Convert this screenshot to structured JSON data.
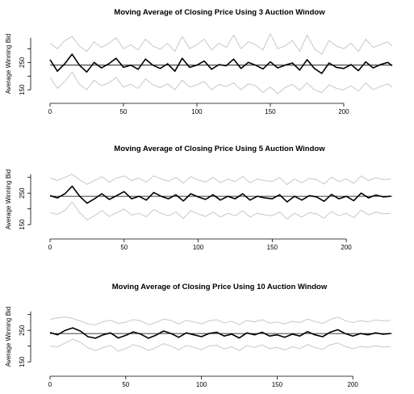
{
  "colors": {
    "moving_average": "#000000",
    "band": "#c8c8c8",
    "mean_line": "#000000",
    "axis": "#000000",
    "background": "#ffffff"
  },
  "chart_data": [
    {
      "type": "line",
      "title": "Moving Average of Closing Price Using 3 Auction Window",
      "xlabel": "",
      "ylabel": "Average Winning Bid",
      "xlim": [
        0,
        233
      ],
      "ylim": [
        130,
        360
      ],
      "x_ticks": [
        0,
        50,
        100,
        150,
        200
      ],
      "y_ticks": [
        150,
        250
      ],
      "mean": 240,
      "box": false,
      "series": [
        {
          "role": "moving_average",
          "x": [
            0,
            5,
            10,
            15,
            20,
            25,
            30,
            35,
            40,
            45,
            50,
            55,
            60,
            65,
            70,
            75,
            80,
            85,
            90,
            95,
            100,
            105,
            110,
            115,
            120,
            125,
            130,
            135,
            140,
            145,
            150,
            155,
            160,
            165,
            170,
            175,
            180,
            185,
            190,
            195,
            200,
            205,
            210,
            215,
            220,
            225,
            230,
            233
          ],
          "values": [
            260,
            218,
            245,
            280,
            240,
            215,
            250,
            230,
            245,
            265,
            232,
            240,
            225,
            262,
            240,
            228,
            245,
            218,
            265,
            232,
            240,
            255,
            225,
            242,
            238,
            262,
            228,
            250,
            240,
            226,
            252,
            230,
            240,
            248,
            222,
            260,
            228,
            210,
            248,
            232,
            228,
            242,
            220,
            252,
            230,
            242,
            250,
            238
          ]
        },
        {
          "role": "upper_band",
          "x": [
            0,
            5,
            10,
            15,
            20,
            25,
            30,
            35,
            40,
            45,
            50,
            55,
            60,
            65,
            70,
            75,
            80,
            85,
            90,
            95,
            100,
            105,
            110,
            115,
            120,
            125,
            130,
            135,
            140,
            145,
            150,
            155,
            160,
            165,
            170,
            175,
            180,
            185,
            190,
            195,
            200,
            205,
            210,
            215,
            220,
            225,
            230,
            233
          ],
          "values": [
            320,
            300,
            330,
            345,
            310,
            290,
            325,
            305,
            320,
            340,
            300,
            315,
            295,
            335,
            310,
            298,
            320,
            290,
            345,
            300,
            315,
            335,
            295,
            320,
            305,
            350,
            300,
            325,
            315,
            295,
            355,
            300,
            310,
            330,
            290,
            350,
            300,
            280,
            330,
            310,
            300,
            320,
            290,
            335,
            305,
            315,
            325,
            310
          ]
        },
        {
          "role": "lower_band",
          "x": [
            0,
            5,
            10,
            15,
            20,
            25,
            30,
            35,
            40,
            45,
            50,
            55,
            60,
            65,
            70,
            75,
            80,
            85,
            90,
            95,
            100,
            105,
            110,
            115,
            120,
            125,
            130,
            135,
            140,
            145,
            150,
            155,
            160,
            165,
            170,
            175,
            180,
            185,
            190,
            195,
            200,
            205,
            210,
            215,
            220,
            225,
            230,
            233
          ],
          "values": [
            195,
            155,
            180,
            215,
            170,
            150,
            185,
            165,
            175,
            195,
            160,
            170,
            155,
            190,
            168,
            158,
            172,
            150,
            185,
            160,
            168,
            180,
            150,
            170,
            162,
            175,
            150,
            172,
            165,
            140,
            160,
            135,
            158,
            170,
            148,
            175,
            150,
            140,
            168,
            155,
            150,
            165,
            145,
            175,
            150,
            162,
            172,
            160
          ]
        }
      ]
    },
    {
      "type": "line",
      "title": "Moving Average of Closing Price Using 5 Auction Window",
      "xlabel": "",
      "ylabel": "Average Winning Bid",
      "xlim": [
        0,
        231
      ],
      "ylim": [
        130,
        330
      ],
      "x_ticks": [
        0,
        50,
        100,
        150,
        200
      ],
      "y_ticks": [
        150,
        250
      ],
      "mean": 240,
      "box": false,
      "series": [
        {
          "role": "moving_average",
          "x": [
            0,
            5,
            10,
            15,
            20,
            25,
            30,
            35,
            40,
            45,
            50,
            55,
            60,
            65,
            70,
            75,
            80,
            85,
            90,
            95,
            100,
            105,
            110,
            115,
            120,
            125,
            130,
            135,
            140,
            145,
            150,
            155,
            160,
            165,
            170,
            175,
            180,
            185,
            190,
            195,
            200,
            205,
            210,
            215,
            220,
            225,
            230
          ],
          "values": [
            242,
            235,
            248,
            272,
            240,
            218,
            232,
            248,
            230,
            242,
            255,
            232,
            240,
            228,
            252,
            240,
            232,
            245,
            225,
            248,
            238,
            230,
            245,
            228,
            240,
            232,
            248,
            228,
            240,
            235,
            232,
            245,
            222,
            240,
            228,
            242,
            238,
            224,
            246,
            232,
            240,
            226,
            250,
            235,
            244,
            238,
            240
          ]
        },
        {
          "role": "upper_band",
          "x": [
            0,
            5,
            10,
            15,
            20,
            25,
            30,
            35,
            40,
            45,
            50,
            55,
            60,
            65,
            70,
            75,
            80,
            85,
            90,
            95,
            100,
            105,
            110,
            115,
            120,
            125,
            130,
            135,
            140,
            145,
            150,
            155,
            160,
            165,
            170,
            175,
            180,
            185,
            190,
            195,
            200,
            205,
            210,
            215,
            220,
            225,
            230
          ],
          "values": [
            298,
            290,
            300,
            310,
            292,
            278,
            290,
            302,
            285,
            298,
            305,
            290,
            298,
            285,
            305,
            295,
            288,
            300,
            282,
            302,
            292,
            285,
            300,
            283,
            295,
            287,
            303,
            283,
            295,
            290,
            287,
            300,
            277,
            295,
            283,
            297,
            293,
            279,
            301,
            287,
            295,
            281,
            305,
            290,
            299,
            293,
            295
          ]
        },
        {
          "role": "lower_band",
          "x": [
            0,
            5,
            10,
            15,
            20,
            25,
            30,
            35,
            40,
            45,
            50,
            55,
            60,
            65,
            70,
            75,
            80,
            85,
            90,
            95,
            100,
            105,
            110,
            115,
            120,
            125,
            130,
            135,
            140,
            145,
            150,
            155,
            160,
            165,
            170,
            175,
            180,
            185,
            190,
            195,
            200,
            205,
            210,
            215,
            220,
            225,
            230
          ],
          "values": [
            188,
            182,
            195,
            222,
            188,
            165,
            178,
            195,
            176,
            188,
            200,
            180,
            186,
            175,
            198,
            186,
            178,
            190,
            170,
            194,
            184,
            176,
            190,
            174,
            186,
            178,
            194,
            174,
            186,
            181,
            178,
            190,
            168,
            186,
            174,
            188,
            184,
            170,
            192,
            178,
            186,
            172,
            196,
            181,
            190,
            184,
            186
          ]
        }
      ]
    },
    {
      "type": "line",
      "title": "Moving Average of Closing Price Using 10 Auction Window",
      "xlabel": "",
      "ylabel": "Average Winning Bid",
      "xlim": [
        0,
        226
      ],
      "ylim": [
        130,
        330
      ],
      "x_ticks": [
        0,
        50,
        100,
        150,
        200
      ],
      "y_ticks": [
        150,
        250
      ],
      "mean": 240,
      "box": false,
      "series": [
        {
          "role": "moving_average",
          "x": [
            0,
            5,
            10,
            15,
            20,
            25,
            30,
            35,
            40,
            45,
            50,
            55,
            60,
            65,
            70,
            75,
            80,
            85,
            90,
            95,
            100,
            105,
            110,
            115,
            120,
            125,
            130,
            135,
            140,
            145,
            150,
            155,
            160,
            165,
            170,
            175,
            180,
            185,
            190,
            195,
            200,
            205,
            210,
            215,
            220,
            225
          ],
          "values": [
            243,
            236,
            250,
            258,
            248,
            230,
            225,
            236,
            242,
            226,
            234,
            245,
            238,
            225,
            235,
            248,
            240,
            228,
            242,
            236,
            230,
            240,
            244,
            232,
            238,
            226,
            242,
            236,
            244,
            232,
            236,
            228,
            238,
            232,
            246,
            236,
            230,
            244,
            252,
            240,
            232,
            240,
            236,
            242,
            238,
            240
          ]
        },
        {
          "role": "upper_band",
          "x": [
            0,
            5,
            10,
            15,
            20,
            25,
            30,
            35,
            40,
            45,
            50,
            55,
            60,
            65,
            70,
            75,
            80,
            85,
            90,
            95,
            100,
            105,
            110,
            115,
            120,
            125,
            130,
            135,
            140,
            145,
            150,
            155,
            160,
            165,
            170,
            175,
            180,
            185,
            190,
            195,
            200,
            205,
            210,
            215,
            220,
            225
          ],
          "values": [
            285,
            290,
            292,
            288,
            280,
            270,
            268,
            278,
            282,
            272,
            276,
            284,
            280,
            268,
            275,
            286,
            281,
            270,
            282,
            277,
            271,
            280,
            284,
            273,
            279,
            268,
            282,
            277,
            284,
            273,
            277,
            270,
            279,
            274,
            286,
            278,
            272,
            284,
            292,
            281,
            274,
            281,
            277,
            283,
            280,
            282
          ]
        },
        {
          "role": "lower_band",
          "x": [
            0,
            5,
            10,
            15,
            20,
            25,
            30,
            35,
            40,
            45,
            50,
            55,
            60,
            65,
            70,
            75,
            80,
            85,
            90,
            95,
            100,
            105,
            110,
            115,
            120,
            125,
            130,
            135,
            140,
            145,
            150,
            155,
            160,
            165,
            170,
            175,
            180,
            185,
            190,
            195,
            200,
            205,
            210,
            215,
            220,
            225
          ],
          "values": [
            200,
            198,
            210,
            222,
            212,
            195,
            186,
            195,
            202,
            184,
            192,
            205,
            198,
            186,
            195,
            208,
            200,
            188,
            202,
            196,
            189,
            200,
            203,
            191,
            198,
            186,
            202,
            196,
            204,
            192,
            196,
            188,
            198,
            192,
            205,
            196,
            190,
            204,
            210,
            199,
            192,
            199,
            196,
            201,
            197,
            199
          ]
        }
      ]
    }
  ]
}
